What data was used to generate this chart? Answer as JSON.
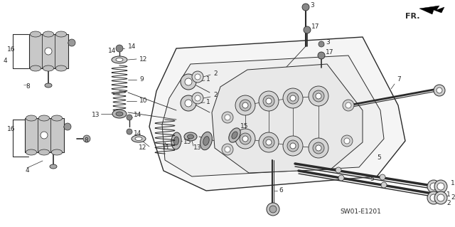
{
  "background_color": "#ffffff",
  "line_color": "#2a2a2a",
  "diagram_code": "SW01-E1201",
  "fig_w": 6.4,
  "fig_h": 3.19,
  "dpi": 100
}
